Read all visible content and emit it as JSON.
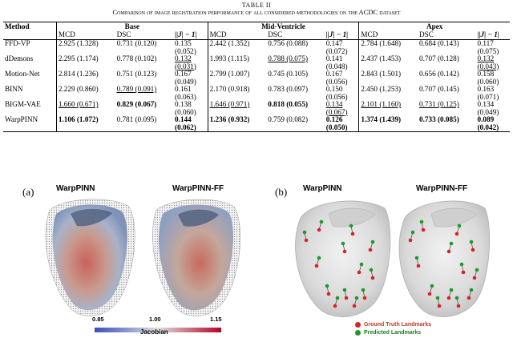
{
  "caption": {
    "number": "TABLE II",
    "title": "Comparison of image registration performance of all considered methodologies on the ACDC dataset"
  },
  "table": {
    "method_header": "Method",
    "groups": [
      "Base",
      "Mid-Ventricle",
      "Apex"
    ],
    "subheaders": [
      "MCD",
      "DSC",
      "||J| − 1|"
    ],
    "rows": [
      {
        "method": "FFD-VP",
        "cells": [
          {
            "v": "2.925 (1.328)"
          },
          {
            "v": "0.731 (0.120)"
          },
          {
            "v": "0.135",
            "v2": "(0.052)"
          },
          {
            "v": "2.442 (1.352)"
          },
          {
            "v": "0.756 (0.088)"
          },
          {
            "v": "0.147",
            "v2": "(0.072)"
          },
          {
            "v": "2.784 (1.648)"
          },
          {
            "v": "0.684 (0.143)"
          },
          {
            "v": "0.117",
            "v2": "(0.075)"
          }
        ]
      },
      {
        "method": "dDemons",
        "cells": [
          {
            "v": "2.295 (1.174)"
          },
          {
            "v": "0.778 (0.102)"
          },
          {
            "v": "0.132",
            "v2": "(0.031)",
            "u": true
          },
          {
            "v": "1.993 (1.115)"
          },
          {
            "v": "0.788 (0.075)",
            "u": true
          },
          {
            "v": "0.141",
            "v2": "(0.048)"
          },
          {
            "v": "2.437 (1.453)"
          },
          {
            "v": "0.707 (0.128)"
          },
          {
            "v": "0.132",
            "v2": "(0.043)",
            "u": true
          }
        ]
      },
      {
        "method": "Motion-Net",
        "cells": [
          {
            "v": "2.814 (1.236)"
          },
          {
            "v": "0.751 (0.123)"
          },
          {
            "v": "0.167",
            "v2": "(0.049)"
          },
          {
            "v": "2.799 (1.007)"
          },
          {
            "v": "0.745 (0.105)"
          },
          {
            "v": "0.167",
            "v2": "(0.056)"
          },
          {
            "v": "2.843 (1.501)"
          },
          {
            "v": "0.656 (0.142)"
          },
          {
            "v": "0.158",
            "v2": "(0.060)"
          }
        ]
      },
      {
        "method": "BINN",
        "cells": [
          {
            "v": "2.229 (0.860)"
          },
          {
            "v": "0.789 (0.091)",
            "u": true
          },
          {
            "v": "0.161",
            "v2": "(0.063)"
          },
          {
            "v": "2.170 (0.918)"
          },
          {
            "v": "0.783 (0.097)"
          },
          {
            "v": "0.150",
            "v2": "(0.056)"
          },
          {
            "v": "2.450 (1.253)"
          },
          {
            "v": "0.707 (0.145)"
          },
          {
            "v": "0.163",
            "v2": "(0.071)"
          }
        ]
      },
      {
        "method": "BIGM-VAE",
        "cells": [
          {
            "v": "1.660 (0.671)",
            "u": true
          },
          {
            "v": "0.829 (0.067)",
            "b": true
          },
          {
            "v": "0.138",
            "v2": "(0.060)"
          },
          {
            "v": "1.646 (0.971)",
            "u": true
          },
          {
            "v": "0.818 (0.055)",
            "b": true
          },
          {
            "v": "0.134",
            "v2": "(0.067)",
            "u": true
          },
          {
            "v": "2.101 (1.160)",
            "u": true
          },
          {
            "v": "0.731 (0.125)",
            "u": true
          },
          {
            "v": "0.134",
            "v2": "(0.049)"
          }
        ]
      },
      {
        "method": "WarpPINN",
        "cells": [
          {
            "v": "1.106 (1.072)",
            "b": true
          },
          {
            "v": "0.781 (0.095)"
          },
          {
            "v": "0.144",
            "v2": "(0.062)",
            "b": true
          },
          {
            "v": "1.236 (0.932)",
            "b": true
          },
          {
            "v": "0.759 (0.082)"
          },
          {
            "v": "0.126",
            "v2": "(0.050)",
            "b": true
          },
          {
            "v": "1.374 (1.439)",
            "b": true
          },
          {
            "v": "0.733 (0.085)",
            "b": true
          },
          {
            "v": "0.089",
            "v2": "(0.042)",
            "b": true
          }
        ]
      }
    ]
  },
  "figure": {
    "panel_a": {
      "label": "(a)",
      "titles": [
        "WarpPINN",
        "WarpPINN-FF"
      ],
      "colorbar": {
        "min": "0.85",
        "mid": "1.00",
        "max": "1.15",
        "label": "Jacobian",
        "colors": [
          "#3b4cc0",
          "#dddddd",
          "#b40426"
        ]
      }
    },
    "panel_b": {
      "label": "(b)",
      "titles": [
        "WarpPINN",
        "WarpPINN-FF"
      ],
      "legend": [
        {
          "label": "Ground Truth Landmarks",
          "color": "#e02020"
        },
        {
          "label": "Predicted Landmarks",
          "color": "#1f9a2a"
        }
      ]
    }
  }
}
